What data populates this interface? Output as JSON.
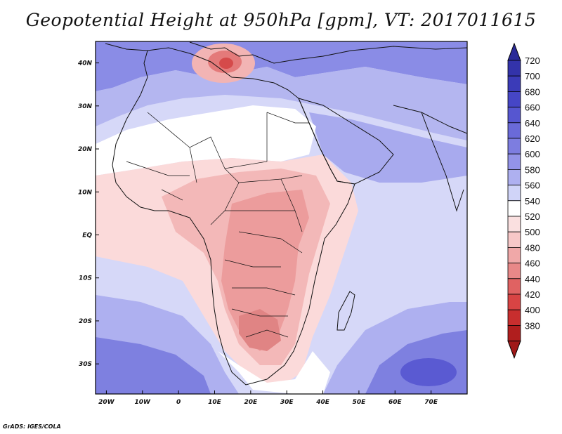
{
  "title": "Geopotential Height at 950hPa [gpm], VT: 2017011615",
  "footer": "GrADS: IGES/COLA",
  "map": {
    "lon_range": [
      -23,
      80
    ],
    "lat_range": [
      -37,
      45
    ],
    "lat_ticks": [
      {
        "value": 40,
        "label": "40N"
      },
      {
        "value": 30,
        "label": "30N"
      },
      {
        "value": 20,
        "label": "20N"
      },
      {
        "value": 10,
        "label": "10N"
      },
      {
        "value": 0,
        "label": "EQ"
      },
      {
        "value": -10,
        "label": "10S"
      },
      {
        "value": -20,
        "label": "20S"
      },
      {
        "value": -30,
        "label": "30S"
      }
    ],
    "lon_ticks": [
      {
        "value": -20,
        "label": "20W"
      },
      {
        "value": -10,
        "label": "10W"
      },
      {
        "value": 0,
        "label": "0"
      },
      {
        "value": 10,
        "label": "10E"
      },
      {
        "value": 20,
        "label": "20E"
      },
      {
        "value": 30,
        "label": "30E"
      },
      {
        "value": 40,
        "label": "40E"
      },
      {
        "value": 50,
        "label": "50E"
      },
      {
        "value": 60,
        "label": "60E"
      },
      {
        "value": 70,
        "label": "70E"
      }
    ]
  },
  "colorbar": {
    "levels": [
      {
        "label": "720",
        "color": "#3333aa"
      },
      {
        "label": "700",
        "color": "#3b3bb8"
      },
      {
        "label": "680",
        "color": "#4646c6"
      },
      {
        "label": "660",
        "color": "#5656d0"
      },
      {
        "label": "640",
        "color": "#6a6ad8"
      },
      {
        "label": "620",
        "color": "#7d7de0"
      },
      {
        "label": "600",
        "color": "#9393e8"
      },
      {
        "label": "580",
        "color": "#aeb0f0"
      },
      {
        "label": "560",
        "color": "#d0d4f8"
      },
      {
        "label": "540",
        "color": "#ffffff"
      },
      {
        "label": "520",
        "color": "#fae0e0"
      },
      {
        "label": "500",
        "color": "#f7c8c8"
      },
      {
        "label": "480",
        "color": "#f0a8a8"
      },
      {
        "label": "460",
        "color": "#e88888"
      },
      {
        "label": "440",
        "color": "#e06262"
      },
      {
        "label": "420",
        "color": "#d84444"
      },
      {
        "label": "400",
        "color": "#c82e2e"
      },
      {
        "label": "380",
        "color": "#b01e1e"
      }
    ],
    "top_arrow_color": "#2a2a98",
    "bottom_arrow_color": "#a01818"
  }
}
